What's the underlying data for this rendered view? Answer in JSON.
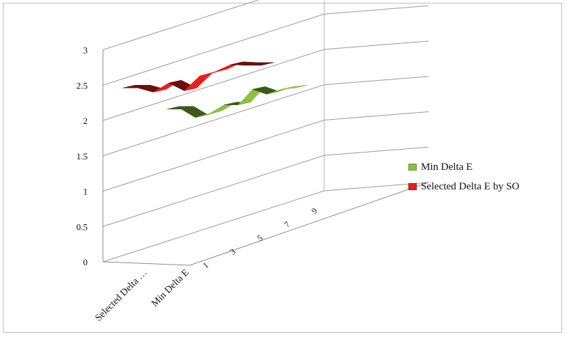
{
  "chart_data": {
    "type": "line",
    "subtype": "3d-ribbon",
    "title": "",
    "xlabel": "",
    "ylabel": "",
    "ylim": [
      0,
      3
    ],
    "y_ticks": [
      "0",
      "0.5",
      "1",
      "1.5",
      "2",
      "2.5",
      "3"
    ],
    "x": [
      1,
      2,
      3,
      4,
      5,
      6,
      7,
      8,
      9,
      10
    ],
    "x_tick_labels": [
      "1",
      "3",
      "5",
      "7",
      "9"
    ],
    "depth_categories": [
      "Selected Delta …",
      "Min Delta E"
    ],
    "grid": true,
    "legend_position": "right",
    "series": [
      {
        "name": "Min Delta E",
        "color": "#8cc043",
        "values": [
          2.16,
          2.16,
          2.04,
          2.1,
          2.22,
          2.22,
          2.44,
          2.37,
          2.44,
          2.46
        ]
      },
      {
        "name": "Selected Delta E by SO",
        "color": "#ee1c1c",
        "values": [
          2.46,
          2.46,
          2.4,
          2.53,
          2.42,
          2.63,
          2.69,
          2.79,
          2.78,
          2.78
        ]
      }
    ]
  }
}
